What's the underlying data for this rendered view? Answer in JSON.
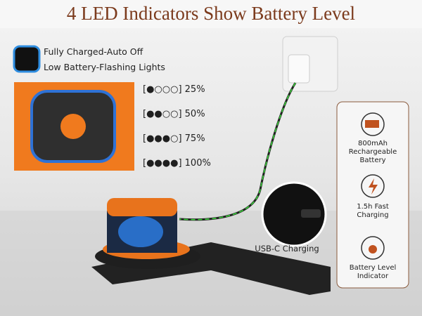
{
  "header": {
    "title": "4 LED Indicators Show Battery Level"
  },
  "legend": {
    "items": [
      "Fully Charged-Auto Off",
      "Low Battery-Flashing Lights"
    ]
  },
  "levels": [
    "[●○○○] 25%",
    "[●●○○] 50%",
    "[●●●○] 75%",
    "[●●●●] 100%"
  ],
  "port": {
    "label": "USB-C Charging"
  },
  "features": [
    "800mAh Rechargeable Battery",
    "1.5h Fast Charging",
    "Battery Level Indicator"
  ]
}
